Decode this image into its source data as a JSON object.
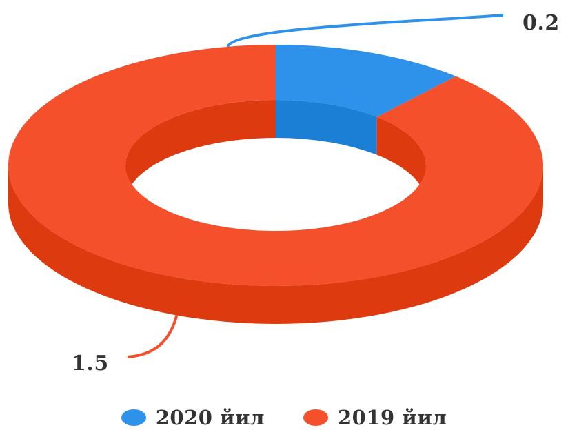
{
  "chart_data": {
    "type": "pie",
    "style": "3d-donut",
    "categories": [
      "2020 йил",
      "2019 йил"
    ],
    "values": [
      0.2,
      1.5
    ],
    "data_labels": [
      "0.2",
      "1.5"
    ],
    "colors": [
      "#2e92ea",
      "#f4502b"
    ],
    "side_colors": [
      "#1b7fd6",
      "#dd3a10"
    ],
    "legend": {
      "position": "bottom",
      "items": [
        {
          "label": "2020 йил",
          "color": "#2e92ea"
        },
        {
          "label": "2019 йил",
          "color": "#f4502b"
        }
      ]
    }
  }
}
